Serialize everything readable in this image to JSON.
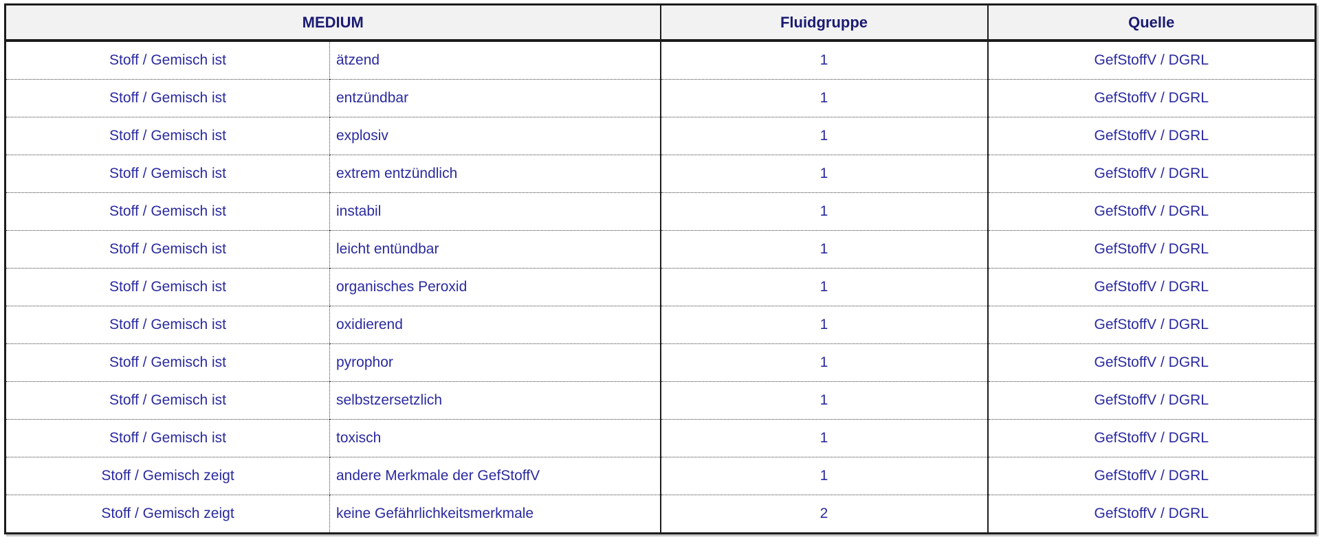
{
  "table": {
    "columns": {
      "medium": "MEDIUM",
      "fluidgruppe": "Fluidgruppe",
      "quelle": "Quelle"
    },
    "rows": [
      {
        "subject": "Stoff / Gemisch ist",
        "property": "ätzend",
        "fluidgruppe": "1",
        "quelle": "GefStoffV / DGRL"
      },
      {
        "subject": "Stoff / Gemisch ist",
        "property": "entzündbar",
        "fluidgruppe": "1",
        "quelle": "GefStoffV / DGRL"
      },
      {
        "subject": "Stoff / Gemisch ist",
        "property": "explosiv",
        "fluidgruppe": "1",
        "quelle": "GefStoffV / DGRL"
      },
      {
        "subject": "Stoff / Gemisch ist",
        "property": "extrem entzündlich",
        "fluidgruppe": "1",
        "quelle": "GefStoffV / DGRL"
      },
      {
        "subject": "Stoff / Gemisch ist",
        "property": "instabil",
        "fluidgruppe": "1",
        "quelle": "GefStoffV / DGRL"
      },
      {
        "subject": "Stoff / Gemisch ist",
        "property": "leicht entündbar",
        "fluidgruppe": "1",
        "quelle": "GefStoffV / DGRL"
      },
      {
        "subject": "Stoff / Gemisch ist",
        "property": "organisches Peroxid",
        "fluidgruppe": "1",
        "quelle": "GefStoffV / DGRL"
      },
      {
        "subject": "Stoff / Gemisch ist",
        "property": "oxidierend",
        "fluidgruppe": "1",
        "quelle": "GefStoffV / DGRL"
      },
      {
        "subject": "Stoff / Gemisch ist",
        "property": "pyrophor",
        "fluidgruppe": "1",
        "quelle": "GefStoffV / DGRL"
      },
      {
        "subject": "Stoff / Gemisch ist",
        "property": "selbstzersetzlich",
        "fluidgruppe": "1",
        "quelle": "GefStoffV / DGRL"
      },
      {
        "subject": "Stoff / Gemisch ist",
        "property": "toxisch",
        "fluidgruppe": "1",
        "quelle": "GefStoffV / DGRL"
      },
      {
        "subject": "Stoff / Gemisch zeigt",
        "property": "andere Merkmale der GefStoffV",
        "fluidgruppe": "1",
        "quelle": "GefStoffV / DGRL"
      },
      {
        "subject": "Stoff / Gemisch zeigt",
        "property": "keine Gefährlichkeitsmerkmale",
        "fluidgruppe": "2",
        "quelle": "GefStoffV / DGRL"
      }
    ]
  },
  "colors": {
    "header_bg": "#f2f2f2",
    "header_text": "#1b1b73",
    "data_text": "#2a2aa0",
    "border": "#1c1c1c"
  }
}
